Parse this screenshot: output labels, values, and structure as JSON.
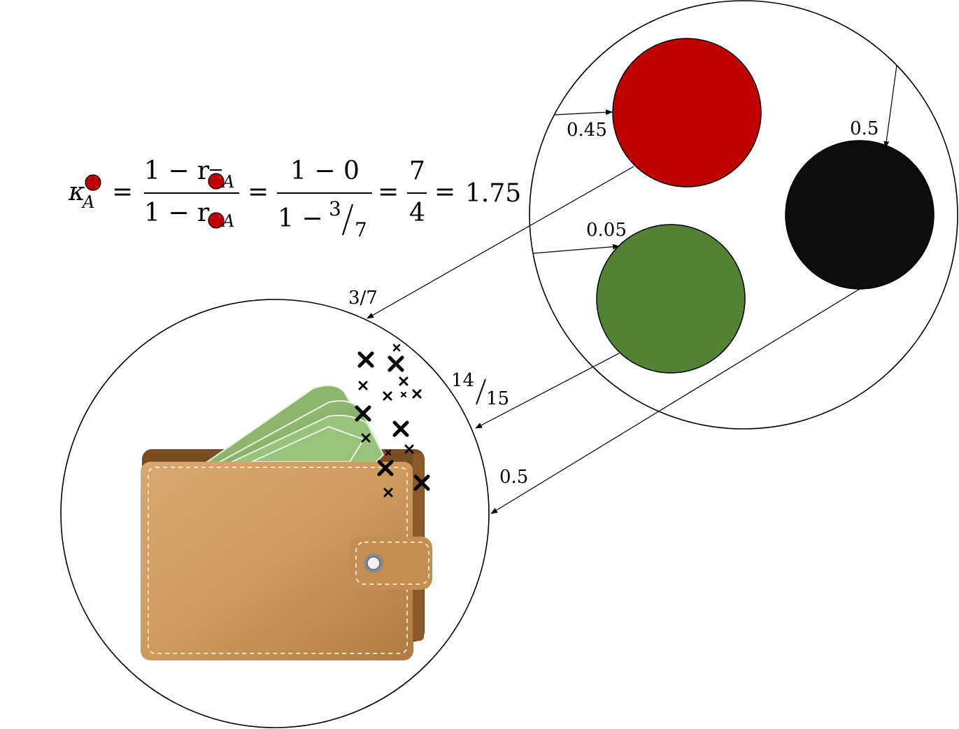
{
  "formula": {
    "kappa": "κ",
    "sub_a": "A",
    "eq": "=",
    "one_minus_r": "1 − r",
    "one_minus_0": "1 − 0",
    "one_minus": "1 −",
    "three": "3",
    "seven": "7",
    "seven_num": "7",
    "four": "4",
    "result": "1.75",
    "colors": {
      "red_dot": "#c00000"
    }
  },
  "urn": {
    "balls": [
      {
        "name": "red",
        "color": "#c00000",
        "probability": "0.45"
      },
      {
        "name": "green",
        "color": "#548235",
        "probability": "0.05"
      },
      {
        "name": "black",
        "color": "#0d0d0d",
        "probability": "0.5"
      }
    ]
  },
  "wallet": {
    "red_label": "3/7",
    "green_label_num": "14",
    "green_label_den": "15",
    "black_label": "0.5"
  }
}
